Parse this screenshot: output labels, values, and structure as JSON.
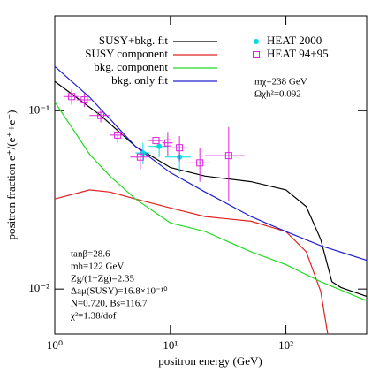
{
  "chart_data": {
    "type": "line",
    "log_x": true,
    "log_y": true,
    "x_label": "positron energy  (GeV)",
    "y_label": "positron fraction e⁺/(e⁺+e⁻)",
    "xlim": [
      1,
      500
    ],
    "ylim": [
      0.0056,
      0.34
    ],
    "xticks": [
      {
        "value": 1,
        "label": "10⁰"
      },
      {
        "value": 10,
        "label": "10¹"
      },
      {
        "value": 100,
        "label": "10²"
      }
    ],
    "yticks": [
      {
        "value": 0.01,
        "label": "10⁻²"
      },
      {
        "value": 0.1,
        "label": "10⁻¹"
      }
    ],
    "series": [
      {
        "name": "SUSY+bkg. fit",
        "color": "#000000",
        "x": [
          1,
          2.5,
          5,
          10,
          20,
          50,
          100,
          150,
          200,
          250,
          300,
          500
        ],
        "values": [
          0.146,
          0.094,
          0.063,
          0.048,
          0.043,
          0.04,
          0.036,
          0.029,
          0.019,
          0.011,
          0.0102,
          0.0091
        ]
      },
      {
        "name": "SUSY component",
        "color": "#e02020",
        "x": [
          1,
          2,
          3,
          5,
          10,
          20,
          50,
          100,
          150,
          200,
          230
        ],
        "values": [
          0.032,
          0.036,
          0.035,
          0.032,
          0.0285,
          0.0255,
          0.024,
          0.021,
          0.0162,
          0.0097,
          0.0056
        ]
      },
      {
        "name": "bkg. component",
        "color": "#22dd22",
        "x": [
          1,
          2,
          3,
          5,
          10,
          20,
          50,
          100,
          200,
          500
        ],
        "values": [
          0.112,
          0.057,
          0.043,
          0.032,
          0.0235,
          0.021,
          0.0162,
          0.0137,
          0.011,
          0.0086
        ]
      },
      {
        "name": "bkg. only fit",
        "color": "#2020d0",
        "x": [
          1,
          2,
          5,
          10,
          20,
          50,
          100,
          200,
          500
        ],
        "values": [
          0.177,
          0.119,
          0.063,
          0.045,
          0.035,
          0.0255,
          0.021,
          0.0175,
          0.0145
        ]
      }
    ],
    "points": [
      {
        "name": "HEAT 2000",
        "color": "#00dddd",
        "marker": "circle",
        "x": [
          5.8,
          8,
          12
        ],
        "xerr": [
          0.8,
          1.5,
          3
        ],
        "values": [
          0.058,
          0.063,
          0.055
        ],
        "yerr": [
          0.008,
          0.008,
          0.01
        ]
      },
      {
        "name": "HEAT 94+95",
        "color": "#dd22dd",
        "marker": "square",
        "x": [
          1.4,
          1.8,
          2.5,
          3.5,
          5.5,
          7.5,
          9.5,
          12,
          18,
          32
        ],
        "xerr": [
          0.2,
          0.25,
          0.5,
          0.5,
          1,
          1,
          1,
          2,
          4,
          12
        ],
        "values": [
          0.12,
          0.115,
          0.094,
          0.073,
          0.055,
          0.068,
          0.066,
          0.062,
          0.051,
          0.056
        ],
        "yerr": [
          0.012,
          0.01,
          0.008,
          0.007,
          0.008,
          0.008,
          0.01,
          0.01,
          0.011,
          0.025
        ]
      }
    ],
    "annotations_right": [
      "mχ=238 GeV",
      "Ωχh²=0.092"
    ],
    "annotations_left": [
      "tanβ=28.6",
      "mh=122 GeV",
      "Zg/(1−Zg)=2.35",
      "Δaμ(SUSY)=16.8×10⁻¹⁰",
      "N=0.720, Bs=116.7",
      "χ²=1.38/dof"
    ]
  }
}
